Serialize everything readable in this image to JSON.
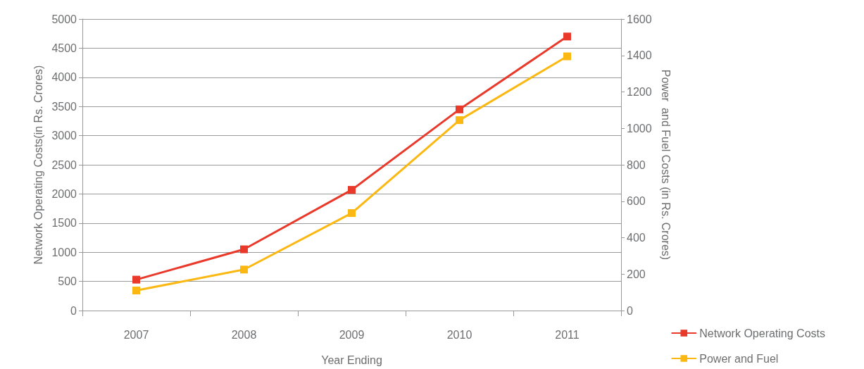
{
  "chart_data": {
    "type": "line",
    "xlabel": "Year Ending",
    "ylabel": "Network Operating Costs(in Rs. Crores)",
    "y2label": "Power  and Fuel Costs (in Rs. Crores)",
    "categories": [
      "2007",
      "2008",
      "2009",
      "2010",
      "2011"
    ],
    "series": [
      {
        "name": "Network Operating Costs",
        "color": "#e8392a",
        "values": [
          530,
          1050,
          2070,
          3450,
          4700
        ]
      },
      {
        "name": "Power and Fuel",
        "color": "#fbb812",
        "axis": "y2",
        "values": [
          110,
          225,
          535,
          1045,
          1395
        ]
      }
    ],
    "ylim": [
      0,
      5000
    ],
    "yticks": [
      0,
      500,
      1000,
      1500,
      2000,
      2500,
      3000,
      3500,
      4000,
      4500,
      5000
    ],
    "y2lim": [
      0,
      1600
    ],
    "y2ticks": [
      0,
      200,
      400,
      600,
      800,
      1000,
      1200,
      1400,
      1600
    ],
    "grid": "y",
    "legend": "bottom right",
    "marker": "square",
    "line_style": "solid"
  }
}
